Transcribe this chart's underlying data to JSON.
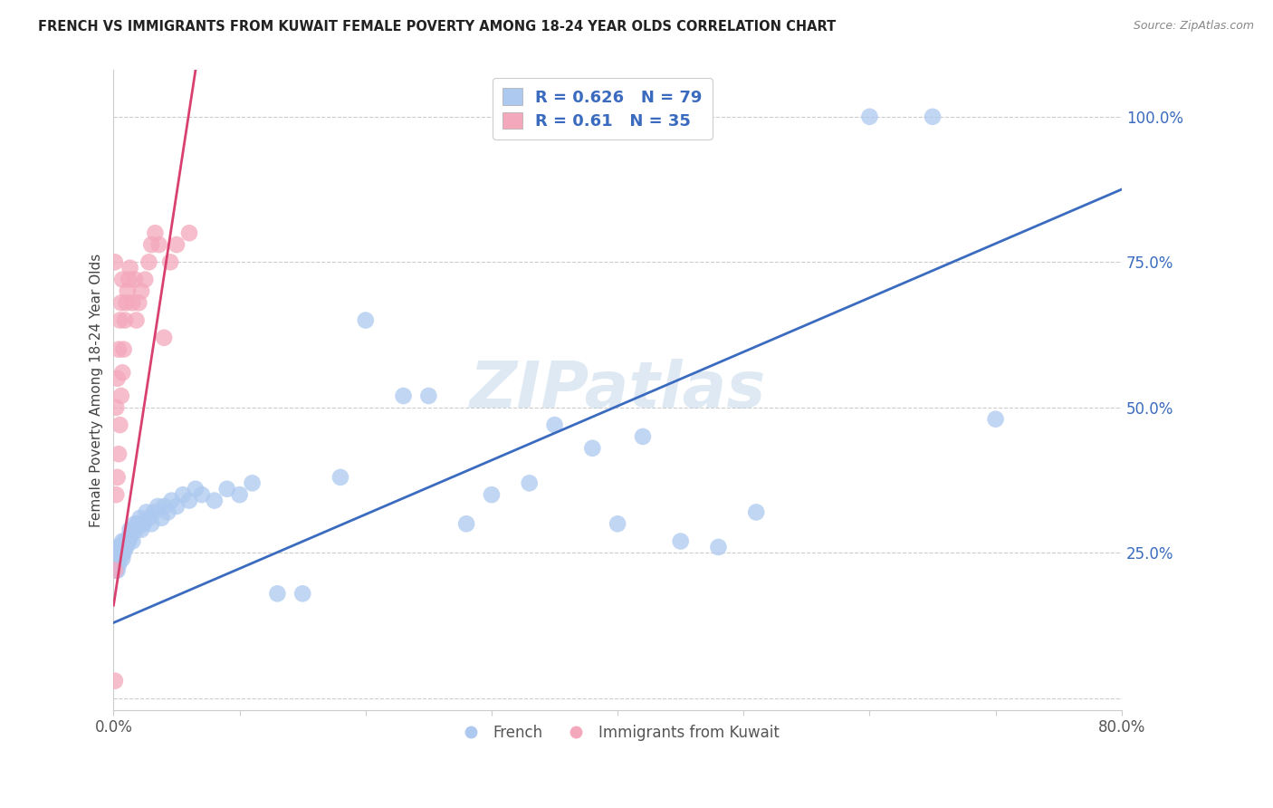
{
  "title": "FRENCH VS IMMIGRANTS FROM KUWAIT FEMALE POVERTY AMONG 18-24 YEAR OLDS CORRELATION CHART",
  "source": "Source: ZipAtlas.com",
  "ylabel": "Female Poverty Among 18-24 Year Olds",
  "xlim": [
    0.0,
    0.8
  ],
  "ylim": [
    -0.02,
    1.08
  ],
  "french_R": 0.626,
  "french_N": 79,
  "kuwait_R": 0.61,
  "kuwait_N": 35,
  "french_color": "#adc9f0",
  "kuwait_color": "#f4a8bc",
  "french_line_color": "#3a6bbf",
  "kuwait_line_color": "#d84070",
  "tick_label_color": "#3a6bbf",
  "watermark": "ZIPatlas",
  "french_line_x0": 0.0,
  "french_line_y0": 0.13,
  "french_line_x1": 0.8,
  "french_line_y1": 0.875,
  "kuwait_line_x0": 0.0,
  "kuwait_line_y0": 0.16,
  "kuwait_line_x1": 0.065,
  "kuwait_line_y1": 1.08,
  "french_x": [
    0.001,
    0.001,
    0.001,
    0.002,
    0.002,
    0.002,
    0.002,
    0.003,
    0.003,
    0.003,
    0.003,
    0.004,
    0.004,
    0.004,
    0.005,
    0.005,
    0.005,
    0.006,
    0.006,
    0.007,
    0.007,
    0.007,
    0.008,
    0.008,
    0.009,
    0.009,
    0.01,
    0.01,
    0.011,
    0.012,
    0.013,
    0.013,
    0.014,
    0.015,
    0.016,
    0.017,
    0.018,
    0.019,
    0.02,
    0.021,
    0.022,
    0.024,
    0.026,
    0.028,
    0.03,
    0.032,
    0.035,
    0.038,
    0.04,
    0.043,
    0.046,
    0.05,
    0.055,
    0.06,
    0.065,
    0.07,
    0.08,
    0.09,
    0.1,
    0.11,
    0.13,
    0.15,
    0.18,
    0.2,
    0.23,
    0.25,
    0.28,
    0.3,
    0.33,
    0.35,
    0.38,
    0.4,
    0.42,
    0.45,
    0.48,
    0.51,
    0.6,
    0.65,
    0.7
  ],
  "french_y": [
    0.22,
    0.23,
    0.24,
    0.22,
    0.23,
    0.24,
    0.25,
    0.22,
    0.23,
    0.25,
    0.26,
    0.23,
    0.25,
    0.26,
    0.24,
    0.25,
    0.26,
    0.25,
    0.26,
    0.24,
    0.25,
    0.27,
    0.25,
    0.26,
    0.26,
    0.27,
    0.26,
    0.27,
    0.27,
    0.27,
    0.28,
    0.29,
    0.28,
    0.27,
    0.29,
    0.3,
    0.29,
    0.3,
    0.3,
    0.31,
    0.29,
    0.3,
    0.32,
    0.31,
    0.3,
    0.32,
    0.33,
    0.31,
    0.33,
    0.32,
    0.34,
    0.33,
    0.35,
    0.34,
    0.36,
    0.35,
    0.34,
    0.36,
    0.35,
    0.37,
    0.18,
    0.18,
    0.38,
    0.65,
    0.52,
    0.52,
    0.3,
    0.35,
    0.37,
    0.47,
    0.43,
    0.3,
    0.45,
    0.27,
    0.26,
    0.32,
    1.0,
    1.0,
    0.48
  ],
  "kuwait_x": [
    0.001,
    0.001,
    0.001,
    0.002,
    0.002,
    0.003,
    0.003,
    0.004,
    0.004,
    0.005,
    0.005,
    0.006,
    0.006,
    0.007,
    0.007,
    0.008,
    0.009,
    0.01,
    0.011,
    0.012,
    0.013,
    0.015,
    0.017,
    0.018,
    0.02,
    0.022,
    0.025,
    0.028,
    0.03,
    0.033,
    0.036,
    0.04,
    0.045,
    0.05,
    0.06
  ],
  "kuwait_y": [
    0.03,
    0.22,
    0.75,
    0.35,
    0.5,
    0.38,
    0.55,
    0.42,
    0.6,
    0.47,
    0.65,
    0.52,
    0.68,
    0.56,
    0.72,
    0.6,
    0.65,
    0.68,
    0.7,
    0.72,
    0.74,
    0.68,
    0.72,
    0.65,
    0.68,
    0.7,
    0.72,
    0.75,
    0.78,
    0.8,
    0.78,
    0.62,
    0.75,
    0.78,
    0.8
  ]
}
